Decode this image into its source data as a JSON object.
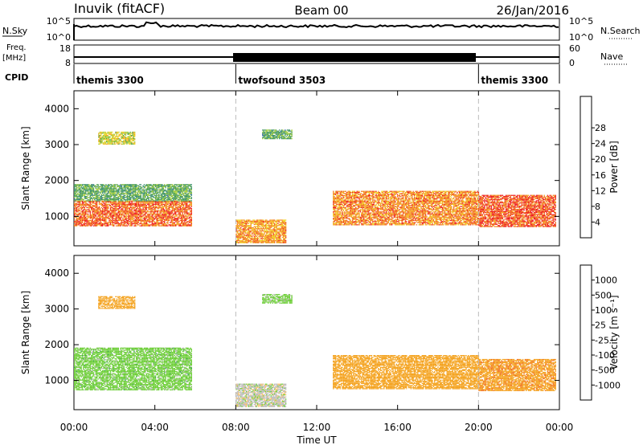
{
  "header": {
    "station": "Inuvik (fitACF)",
    "beam": "Beam 00",
    "date": "26/Jan/2016"
  },
  "top_panels": {
    "nsky": {
      "label": "N.Sky",
      "tick_top": "10^5",
      "tick_bottom": "10^0",
      "right_label": "N.Search",
      "right_tick_top": "10^5",
      "right_tick_bottom": "10^0"
    },
    "freq": {
      "label_line1": "Freq.",
      "label_line2": "[MHz]",
      "tick_top": "18",
      "tick_bottom": "8",
      "right_label": "Nave",
      "right_tick_top": "60",
      "right_tick_bottom": "0"
    },
    "cpid": {
      "label": "CPID",
      "segments": [
        {
          "name": "themis 3300",
          "start_h": 0,
          "end_h": 8
        },
        {
          "name": "twofsound 3503",
          "start_h": 8,
          "end_h": 20
        },
        {
          "name": "themis 3300",
          "start_h": 20,
          "end_h": 24
        }
      ]
    }
  },
  "chart_data": [
    {
      "type": "heatmap",
      "parameter": "power",
      "xlabel": "Time UT",
      "ylabel": "Slant Range [km]",
      "xlim": [
        0,
        24
      ],
      "ylim": [
        180,
        4500
      ],
      "x_ticks": [
        "00:00",
        "04:00",
        "08:00",
        "12:00",
        "16:00",
        "20:00",
        "00:00"
      ],
      "y_ticks": [
        1000,
        2000,
        3000,
        4000
      ],
      "colorbar": {
        "label": "Power [dB]",
        "range": [
          0,
          32
        ],
        "ticks": [
          "4",
          "8",
          "12",
          "16",
          "20",
          "24",
          "28"
        ],
        "colors": [
          "#1a1aff",
          "#2e5ea8",
          "#3a8f6f",
          "#4fa24a",
          "#a6cf3a",
          "#f2d21b",
          "#f4a21d",
          "#f26c1d",
          "#ee1c1c"
        ]
      },
      "regions": [
        {
          "t0": 0.0,
          "t1": 5.8,
          "r0": 720,
          "r1": 1420,
          "value": 27
        },
        {
          "t0": 0.0,
          "t1": 5.8,
          "r0": 1420,
          "r1": 1900,
          "value": 12
        },
        {
          "t0": 1.2,
          "t1": 3.0,
          "r0": 3000,
          "r1": 3350,
          "value": 18
        },
        {
          "t0": 8.0,
          "t1": 10.5,
          "r0": 250,
          "r1": 900,
          "value": 24
        },
        {
          "t0": 9.3,
          "t1": 10.8,
          "r0": 3150,
          "r1": 3400,
          "value": 12
        },
        {
          "t0": 12.8,
          "t1": 20.0,
          "r0": 750,
          "r1": 1700,
          "value": 25
        },
        {
          "t0": 20.0,
          "t1": 23.8,
          "r0": 700,
          "r1": 1600,
          "value": 28
        }
      ],
      "markers_h": [
        8,
        20
      ]
    },
    {
      "type": "heatmap",
      "parameter": "velocity",
      "xlabel": "Time UT",
      "ylabel": "Slant Range [km]",
      "xlim": [
        0,
        24
      ],
      "ylim": [
        180,
        4500
      ],
      "x_ticks": [
        "00:00",
        "04:00",
        "08:00",
        "12:00",
        "16:00",
        "20:00",
        "00:00"
      ],
      "y_ticks": [
        1000,
        2000,
        3000,
        4000
      ],
      "colorbar": {
        "label": "Velocity [m s⁻¹]",
        "range": [
          -1000,
          1000
        ],
        "ticks": [
          "1000",
          "500",
          "100",
          "25",
          "-25",
          "-100",
          "-500",
          "-1000"
        ],
        "colors": [
          "#ee1c1c",
          "#f26c1d",
          "#f4a21d",
          "#f7c26b",
          "#bdbdbd",
          "#6fcf3a",
          "#3a9f5a",
          "#2e7f7f",
          "#1c3fa8"
        ]
      },
      "regions": [
        {
          "t0": 0.0,
          "t1": 5.8,
          "r0": 720,
          "r1": 1900,
          "value": 60
        },
        {
          "t0": 1.2,
          "t1": 3.0,
          "r0": 3000,
          "r1": 3350,
          "value": -150
        },
        {
          "t0": 8.0,
          "t1": 10.5,
          "r0": 250,
          "r1": 900,
          "value": 0
        },
        {
          "t0": 9.3,
          "t1": 10.8,
          "r0": 3150,
          "r1": 3400,
          "value": 50
        },
        {
          "t0": 12.8,
          "t1": 20.0,
          "r0": 750,
          "r1": 1700,
          "value": -250
        },
        {
          "t0": 20.0,
          "t1": 23.8,
          "r0": 700,
          "r1": 1600,
          "value": -350
        }
      ],
      "markers_h": [
        8,
        20
      ]
    }
  ]
}
